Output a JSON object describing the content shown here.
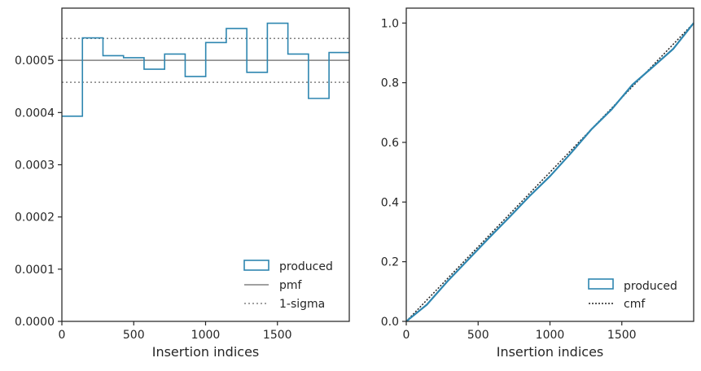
{
  "colors": {
    "produced": "#2e86b0",
    "pmf": "#808080",
    "sigma": "#808080",
    "cmf": "#222222",
    "axis": "#262626"
  },
  "chart_data": [
    {
      "type": "step",
      "xlabel": "Insertion indices",
      "ylabel": "",
      "xlim": [
        0,
        2000
      ],
      "ylim": [
        0,
        0.0006
      ],
      "xticks": [
        0,
        500,
        1000,
        1500
      ],
      "yticks": [
        0,
        0.0001,
        0.0002,
        0.0003,
        0.0004,
        0.0005
      ],
      "xtick_labels": [
        "0",
        "500",
        "1000",
        "1500"
      ],
      "ytick_labels": [
        "0.0000",
        "0.0001",
        "0.0002",
        "0.0003",
        "0.0004",
        "0.0005"
      ],
      "bin_edges": [
        0,
        143,
        286,
        429,
        572,
        715,
        858,
        1001,
        1144,
        1287,
        1430,
        1573,
        1716,
        1859,
        2000
      ],
      "produced": [
        0.000393,
        0.000543,
        0.000509,
        0.000505,
        0.000483,
        0.000512,
        0.000469,
        0.000534,
        0.000561,
        0.000477,
        0.000571,
        0.000512,
        0.000427,
        0.000515
      ],
      "pmf": 0.0005,
      "sigma_lower": 0.000458,
      "sigma_upper": 0.000542,
      "legend_position": "lower-right",
      "legend": [
        "produced",
        "pmf",
        "1-sigma"
      ]
    },
    {
      "type": "line",
      "xlabel": "Insertion indices",
      "ylabel": "",
      "xlim": [
        0,
        2000
      ],
      "ylim": [
        0,
        1.05
      ],
      "xticks": [
        0,
        500,
        1000,
        1500
      ],
      "yticks": [
        0,
        0.2,
        0.4,
        0.6,
        0.8,
        1.0
      ],
      "xtick_labels": [
        "0",
        "500",
        "1000",
        "1500"
      ],
      "ytick_labels": [
        "0.0",
        "0.2",
        "0.4",
        "0.6",
        "0.8",
        "1.0"
      ],
      "produced": {
        "x": [
          0,
          143,
          286,
          429,
          572,
          715,
          858,
          1001,
          1144,
          1287,
          1430,
          1573,
          1716,
          1859,
          2000
        ],
        "y": [
          0,
          0.056,
          0.134,
          0.206,
          0.278,
          0.348,
          0.42,
          0.487,
          0.563,
          0.643,
          0.711,
          0.793,
          0.853,
          0.914,
          1.0
        ]
      },
      "cmf": {
        "x": [
          0,
          2000
        ],
        "y": [
          0,
          1.0
        ]
      },
      "legend_position": "lower-right",
      "legend": [
        "produced",
        "cmf"
      ]
    }
  ]
}
